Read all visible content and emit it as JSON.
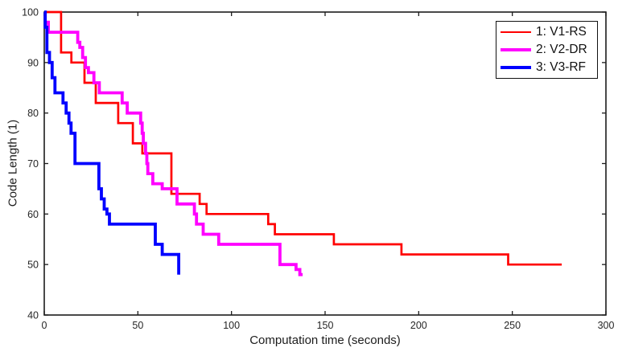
{
  "chart_data": {
    "type": "line",
    "line_style": "stairs",
    "title": "",
    "xlabel": "Computation time (seconds)",
    "ylabel": "Code Length (1)",
    "xlim": [
      0,
      300
    ],
    "ylim": [
      40,
      100
    ],
    "x_ticks": [
      0,
      50,
      100,
      150,
      200,
      250,
      300
    ],
    "y_ticks": [
      40,
      50,
      60,
      70,
      80,
      90,
      100
    ],
    "grid": false,
    "axis_color": "#1c1c1c",
    "tick_label_color": "#262626",
    "legend_position": "top-right",
    "series": [
      {
        "name": "1: V1-RS",
        "color": "#ff0000",
        "line_width": 2.7,
        "points": [
          [
            0,
            100
          ],
          [
            9,
            92
          ],
          [
            14.5,
            90
          ],
          [
            21.5,
            86
          ],
          [
            27.5,
            82
          ],
          [
            39.5,
            78
          ],
          [
            47.3,
            74
          ],
          [
            52.4,
            72
          ],
          [
            67.9,
            64
          ],
          [
            83,
            62
          ],
          [
            86.7,
            60
          ],
          [
            119.6,
            58
          ],
          [
            123.2,
            56
          ],
          [
            154.7,
            54
          ],
          [
            190.8,
            52
          ],
          [
            247.8,
            50
          ],
          [
            276.4,
            50
          ]
        ]
      },
      {
        "name": "2: V2-DR",
        "color": "#ff00ff",
        "line_width": 3.8,
        "points": [
          [
            0.6,
            98
          ],
          [
            2.2,
            96
          ],
          [
            17.9,
            94
          ],
          [
            19,
            93
          ],
          [
            20.5,
            91
          ],
          [
            22,
            89
          ],
          [
            23.6,
            88
          ],
          [
            26.5,
            86
          ],
          [
            29.4,
            84
          ],
          [
            41.6,
            82
          ],
          [
            44.3,
            80
          ],
          [
            51.5,
            78
          ],
          [
            52.3,
            76
          ],
          [
            52.9,
            74
          ],
          [
            54.1,
            72
          ],
          [
            54.8,
            70
          ],
          [
            55.3,
            68
          ],
          [
            58,
            66
          ],
          [
            63,
            65
          ],
          [
            70.9,
            62
          ],
          [
            80.2,
            60
          ],
          [
            81.3,
            58
          ],
          [
            84.9,
            56
          ],
          [
            93.2,
            54
          ],
          [
            125.9,
            50
          ],
          [
            134.5,
            49
          ],
          [
            136.5,
            48
          ],
          [
            138,
            48
          ]
        ]
      },
      {
        "name": "3: V3-RF",
        "color": "#0000ff",
        "line_width": 3.8,
        "points": [
          [
            0,
            100
          ],
          [
            0.5,
            97
          ],
          [
            1.4,
            92
          ],
          [
            2.8,
            90
          ],
          [
            4.2,
            87
          ],
          [
            5.7,
            84
          ],
          [
            10,
            82
          ],
          [
            11.7,
            80
          ],
          [
            13.2,
            78
          ],
          [
            14.3,
            76
          ],
          [
            16.4,
            70
          ],
          [
            29.2,
            65
          ],
          [
            30.5,
            63
          ],
          [
            32,
            61
          ],
          [
            33.5,
            60
          ],
          [
            34.8,
            58
          ],
          [
            59.3,
            54
          ],
          [
            63,
            52
          ],
          [
            71.8,
            48
          ]
        ]
      }
    ]
  }
}
